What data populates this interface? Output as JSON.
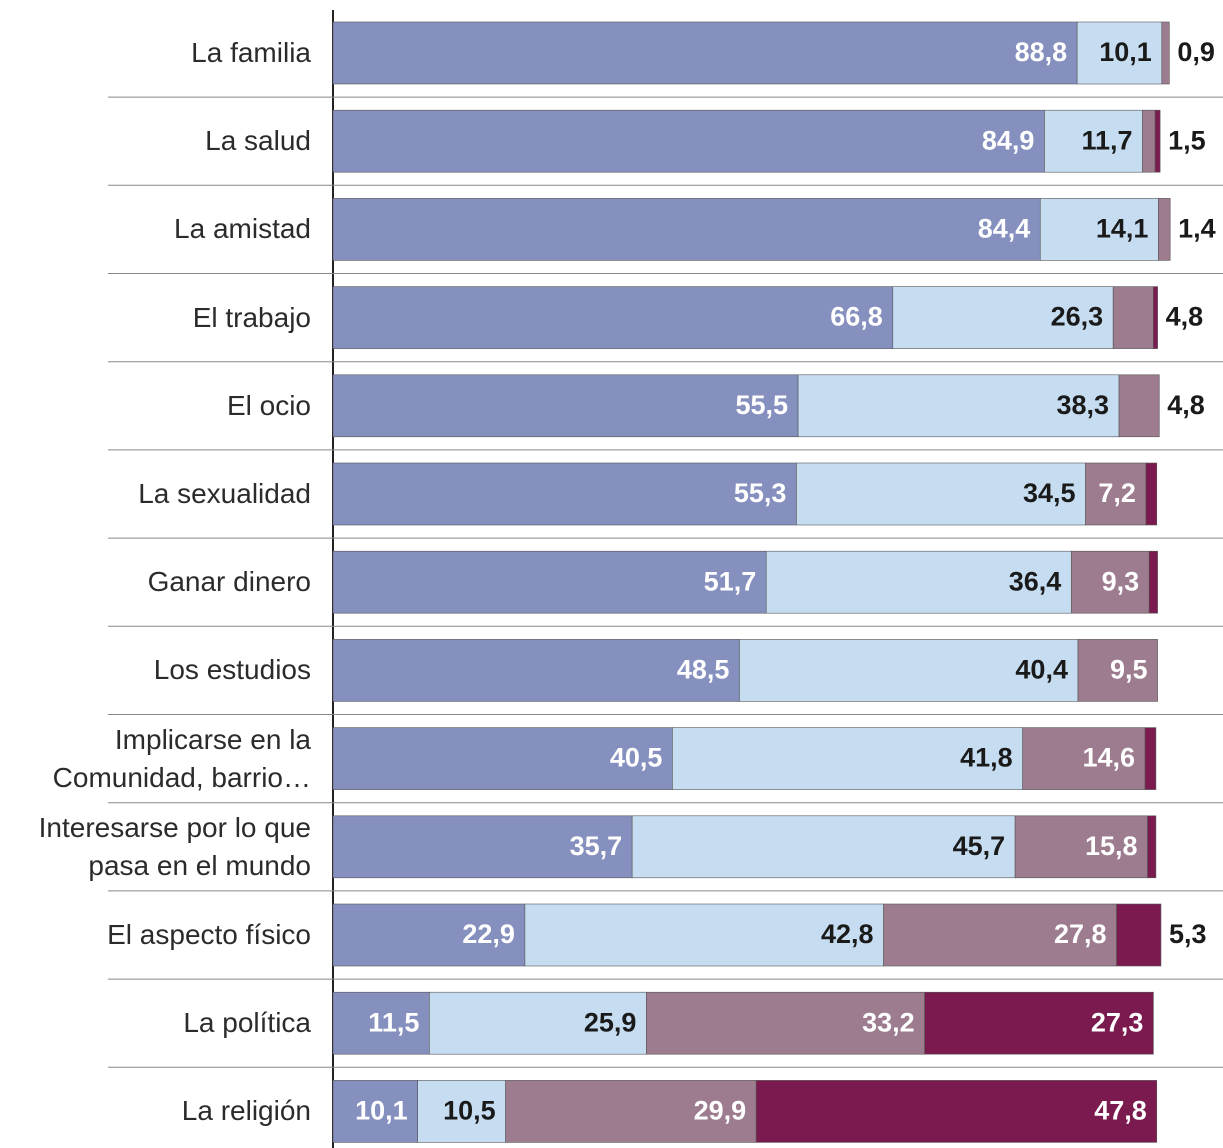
{
  "chart_data": {
    "type": "stacked-bar-horizontal",
    "categories": [
      "La familia",
      "La salud",
      "La amistad",
      "El trabajo",
      "El ocio",
      "La sexualidad",
      "Ganar dinero",
      "Los estudios",
      "Implicarse en la\nComunidad, barrio…",
      "Interesarse por lo que\npasa en el mundo",
      "El aspecto físico",
      "La política",
      "La religión"
    ],
    "series": [
      {
        "color": "#8690bf",
        "values": [
          88.8,
          84.9,
          84.4,
          66.8,
          55.5,
          55.3,
          51.7,
          48.5,
          40.5,
          35.7,
          22.9,
          11.5,
          10.1
        ],
        "value_labels": [
          "88,8",
          "84,9",
          "84,4",
          "66,8",
          "55,5",
          "55,3",
          "51,7",
          "48,5",
          "40,5",
          "35,7",
          "22,9",
          "11,5",
          "10,1"
        ]
      },
      {
        "color": "#c6ddf1",
        "values": [
          10.1,
          11.7,
          14.1,
          26.3,
          38.3,
          34.5,
          36.4,
          40.4,
          41.8,
          45.7,
          42.8,
          25.9,
          10.5
        ],
        "value_labels": [
          "10,1",
          "11,7",
          "14,1",
          "26,3",
          "38,3",
          "34,5",
          "36,4",
          "40,4",
          "41,8",
          "45,7",
          "42,8",
          "25,9",
          "10,5"
        ]
      },
      {
        "color": "#9c7c8e",
        "values": [
          0.9,
          1.5,
          1.4,
          4.8,
          4.8,
          7.2,
          9.3,
          9.5,
          14.6,
          15.8,
          27.8,
          33.2,
          29.9
        ],
        "value_labels": [
          "0,9",
          "1,5",
          "1,4",
          "4,8",
          "4,8",
          "7,2",
          "9,3",
          "9,5",
          "14,6",
          "15,8",
          "27,8",
          "33,2",
          "29,9"
        ]
      },
      {
        "color": "#7b1a4f",
        "values": [
          null,
          0.6,
          null,
          0.5,
          null,
          1.3,
          1.0,
          null,
          1.3,
          1.0,
          5.3,
          27.3,
          47.8
        ],
        "value_labels": [
          null,
          null,
          null,
          null,
          null,
          null,
          null,
          null,
          null,
          null,
          "5,3",
          "27,3",
          "47,8"
        ]
      }
    ]
  }
}
